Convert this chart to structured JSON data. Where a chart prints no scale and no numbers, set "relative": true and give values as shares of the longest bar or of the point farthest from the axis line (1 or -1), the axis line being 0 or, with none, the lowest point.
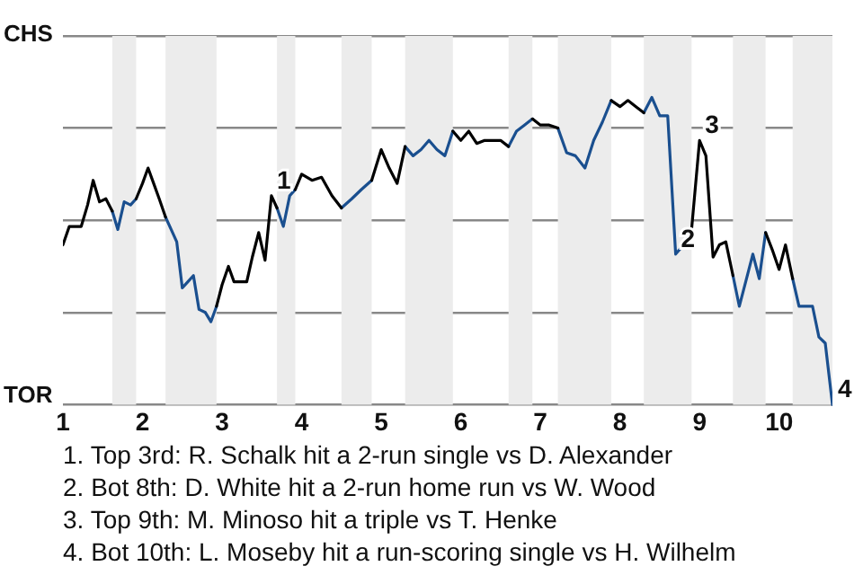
{
  "chart_data": {
    "type": "line",
    "relative": true,
    "x": [
      1,
      1.08,
      1.15,
      1.23,
      1.31,
      1.38,
      1.46,
      1.54,
      1.62,
      1.69,
      1.77,
      1.85,
      1.92,
      2,
      2.07,
      2.14,
      2.21,
      2.29,
      2.36,
      2.43,
      2.5,
      2.57,
      2.64,
      2.71,
      2.79,
      2.86,
      2.93,
      3,
      3.08,
      3.15,
      3.23,
      3.31,
      3.38,
      3.46,
      3.54,
      3.62,
      3.69,
      3.77,
      3.85,
      3.92,
      4,
      4.13,
      4.25,
      4.38,
      4.5,
      4.63,
      4.75,
      4.88,
      5,
      5.1,
      5.2,
      5.3,
      5.4,
      5.5,
      5.6,
      5.7,
      5.8,
      5.9,
      6,
      6.1,
      6.2,
      6.3,
      6.4,
      6.5,
      6.6,
      6.7,
      6.8,
      6.9,
      7,
      7.11,
      7.22,
      7.33,
      7.44,
      7.56,
      7.67,
      7.78,
      7.89,
      8,
      8.1,
      8.2,
      8.3,
      8.4,
      8.5,
      8.6,
      8.7,
      8.8,
      8.9,
      9,
      9.08,
      9.17,
      9.25,
      9.33,
      9.42,
      9.5,
      9.58,
      9.67,
      9.75,
      9.83,
      9.92,
      10,
      10.08,
      10.17,
      10.25,
      10.33,
      10.42,
      10.5,
      10.58,
      10.67
    ],
    "series": [
      {
        "color": "#000000",
        "values": [
          0.52,
          0.58,
          0.58,
          0.58,
          0.65,
          0.73,
          0.66,
          0.67,
          0.63,
          null,
          null,
          null,
          0.67,
          0.72,
          0.77,
          0.72,
          0.67,
          0.61,
          null,
          null,
          null,
          null,
          null,
          null,
          null,
          null,
          0.32,
          0.39,
          0.45,
          0.4,
          0.4,
          0.4,
          0.48,
          0.56,
          0.47,
          0.68,
          0.64,
          null,
          null,
          0.7,
          0.75,
          0.73,
          0.74,
          0.68,
          0.64,
          null,
          null,
          0.73,
          0.83,
          0.77,
          0.72,
          0.84,
          null,
          null,
          null,
          null,
          null,
          0.89,
          0.86,
          0.89,
          0.85,
          0.86,
          0.86,
          0.86,
          0.84,
          null,
          null,
          0.93,
          0.91,
          0.91,
          0.9,
          null,
          null,
          null,
          null,
          null,
          0.99,
          0.97,
          0.99,
          0.97,
          0.95,
          null,
          null,
          null,
          null,
          null,
          0.57,
          0.86,
          0.81,
          0.48,
          0.52,
          0.53,
          0.42,
          null,
          null,
          null,
          null,
          0.56,
          0.5,
          0.44,
          0.52,
          0.41,
          null,
          null,
          null,
          null,
          null,
          null
        ]
      },
      {
        "color": "#1a4f8f",
        "values": [
          null,
          null,
          null,
          null,
          null,
          null,
          null,
          null,
          0.63,
          0.57,
          0.66,
          0.65,
          0.67,
          null,
          null,
          null,
          null,
          0.61,
          0.57,
          0.53,
          0.38,
          0.4,
          0.42,
          0.31,
          0.3,
          0.27,
          0.32,
          null,
          null,
          null,
          null,
          null,
          null,
          null,
          null,
          null,
          0.64,
          0.58,
          0.68,
          0.7,
          null,
          null,
          null,
          null,
          0.64,
          0.67,
          0.7,
          0.73,
          null,
          null,
          null,
          0.84,
          0.81,
          0.83,
          0.86,
          0.83,
          0.81,
          0.89,
          null,
          null,
          null,
          null,
          null,
          null,
          0.84,
          0.89,
          0.91,
          0.93,
          null,
          null,
          0.9,
          0.82,
          0.81,
          0.77,
          0.86,
          0.92,
          0.99,
          null,
          null,
          null,
          0.95,
          1,
          0.94,
          0.94,
          0.49,
          0.52,
          0.57,
          null,
          null,
          null,
          null,
          null,
          0.42,
          0.32,
          0.4,
          0.49,
          0.41,
          0.56,
          null,
          null,
          null,
          0.41,
          0.32,
          0.32,
          0.32,
          0.22,
          0.2,
          0
        ]
      }
    ],
    "xlim": [
      1,
      10.67
    ],
    "xticks": [
      1,
      2,
      3,
      4,
      5,
      6,
      7,
      8,
      9,
      10
    ],
    "grid": "y",
    "legend": false,
    "marker": "none",
    "bands": [
      {
        "axis": "x",
        "from": 1.62,
        "to": 1.92,
        "color": "#ececec"
      },
      {
        "axis": "x",
        "from": 2.29,
        "to": 2.93,
        "color": "#ececec"
      },
      {
        "axis": "x",
        "from": 3.69,
        "to": 3.92,
        "color": "#ececec"
      },
      {
        "axis": "x",
        "from": 4.5,
        "to": 4.88,
        "color": "#ececec"
      },
      {
        "axis": "x",
        "from": 5.3,
        "to": 5.9,
        "color": "#ececec"
      },
      {
        "axis": "x",
        "from": 6.6,
        "to": 6.9,
        "color": "#ececec"
      },
      {
        "axis": "x",
        "from": 7.22,
        "to": 7.89,
        "color": "#ececec"
      },
      {
        "axis": "x",
        "from": 8.3,
        "to": 8.9,
        "color": "#ececec"
      },
      {
        "axis": "x",
        "from": 9.42,
        "to": 9.83,
        "color": "#ececec"
      },
      {
        "axis": "x",
        "from": 10.17,
        "to": 10.67,
        "color": "#ececec"
      }
    ],
    "annotations": [
      "CHS",
      "TOR",
      {
        "text": "1",
        "x": 3.62,
        "y": 0.68
      },
      {
        "text": "2",
        "x": 8.7,
        "y": 0.49
      },
      {
        "text": "3",
        "x": 9,
        "y": 0.86
      },
      {
        "text": "4",
        "x": 10.67,
        "y": 0
      },
      "1. Top 3rd: R. Schalk hit a 2-run single vs D. Alexander",
      "2. Bot 8th: D. White hit a 2-run home run vs W. Wood",
      "3. Top 9th: M. Minoso hit a triple vs T. Henke",
      "4. Bot 10th: L. Moseby hit a run-scoring single vs H. Wilhelm"
    ]
  }
}
